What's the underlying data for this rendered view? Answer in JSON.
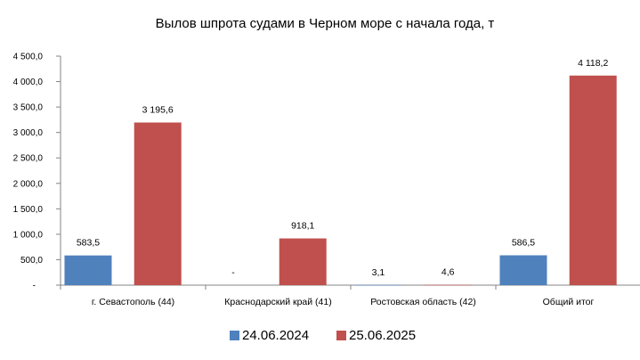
{
  "chart_data": {
    "type": "bar",
    "title": "Вылов шпрота судами в Черном море с начала  года, т",
    "categories": [
      "г. Севастополь (44)",
      "Краснодарский край (41)",
      "Ростовская область (42)",
      "Общий итог"
    ],
    "series": [
      {
        "name": "24.06.2024",
        "color": "#4F81BD",
        "values": [
          583.5,
          null,
          3.1,
          586.5
        ],
        "labels": [
          "583,5",
          "-",
          "3,1",
          "586,5"
        ]
      },
      {
        "name": "25.06.2025",
        "color": "#C0504D",
        "values": [
          3195.6,
          918.1,
          4.6,
          4118.2
        ],
        "labels": [
          "3 195,6",
          "918,1",
          "4,6",
          "4 118,2"
        ]
      }
    ],
    "ylim": [
      0,
      4500
    ],
    "yticks": [
      0,
      500,
      1000,
      1500,
      2000,
      2500,
      3000,
      3500,
      4000,
      4500
    ],
    "ytick_labels": [
      "-",
      "500,0",
      "1 000,0",
      "1 500,0",
      "2 000,0",
      "2 500,0",
      "3 000,0",
      "3 500,0",
      "4 000,0",
      "4 500,0"
    ],
    "legend": "bottom",
    "grid": false
  }
}
